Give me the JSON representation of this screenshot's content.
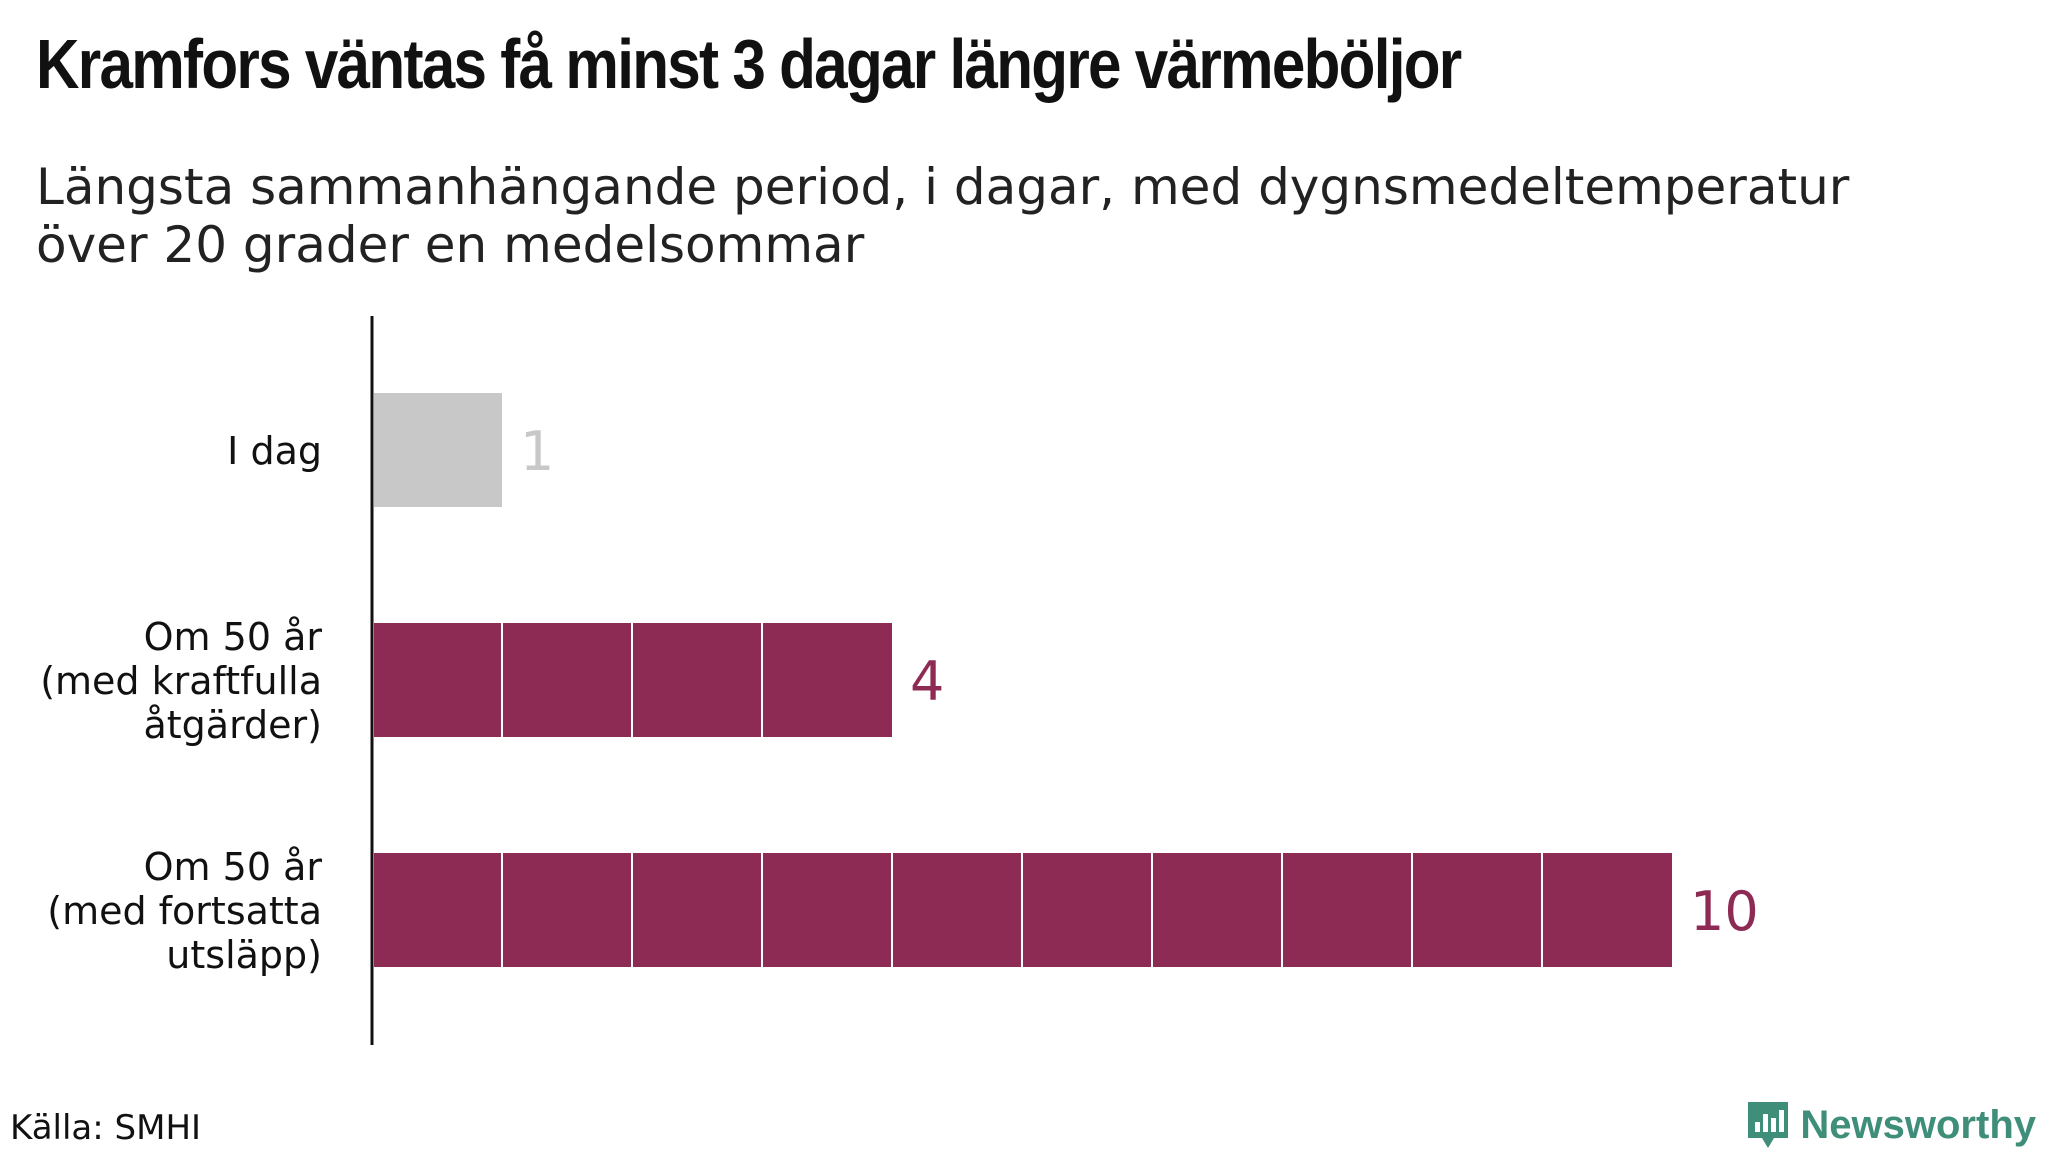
{
  "title": "Kramfors väntas få minst 3 dagar längre värmeböljor",
  "subtitle": "Längsta sammanhängande period, i dagar, med dygnsmedeltemperatur över 20 grader en medelsommar",
  "source": "Källa: SMHI",
  "brand": "Newsworthy",
  "colors": {
    "bar_today": "#c8c8c8",
    "bar_future": "#8e2b55",
    "label_today": "#c8c8c8",
    "label_future": "#8e2b55",
    "brand": "#3e8e7a"
  },
  "chart_data": {
    "type": "bar",
    "orientation": "horizontal",
    "categories": [
      [
        "I dag"
      ],
      [
        "Om 50 år",
        "(med kraftfulla",
        "åtgärder)"
      ],
      [
        "Om 50 år",
        "(med fortsatta",
        "utsläpp)"
      ]
    ],
    "values": [
      1,
      4,
      10
    ],
    "value_labels": [
      "1",
      "4",
      "10"
    ],
    "xlim": [
      0,
      10
    ],
    "grid": false,
    "segmented_by_unit": true
  }
}
